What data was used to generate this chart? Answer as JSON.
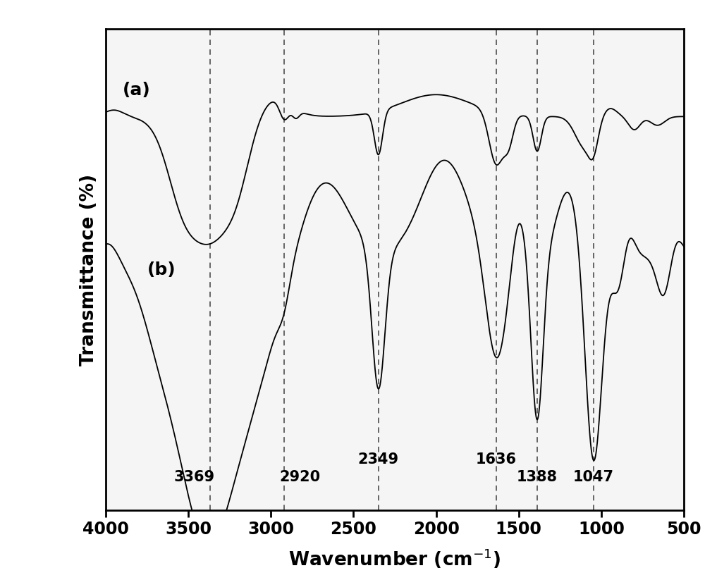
{
  "xmin": 500,
  "xmax": 4000,
  "xlabel": "Wavenumber (cm",
  "ylabel": "Transmittance (%)",
  "background_color": "#ffffff",
  "plot_bg_color": "#f0f0f0",
  "dashed_lines": [
    3369,
    2920,
    2349,
    1636,
    1388,
    1047
  ],
  "label_a": "(a)",
  "label_b": "(b)",
  "xticks": [
    4000,
    3500,
    3000,
    2500,
    2000,
    1500,
    1000,
    500
  ]
}
